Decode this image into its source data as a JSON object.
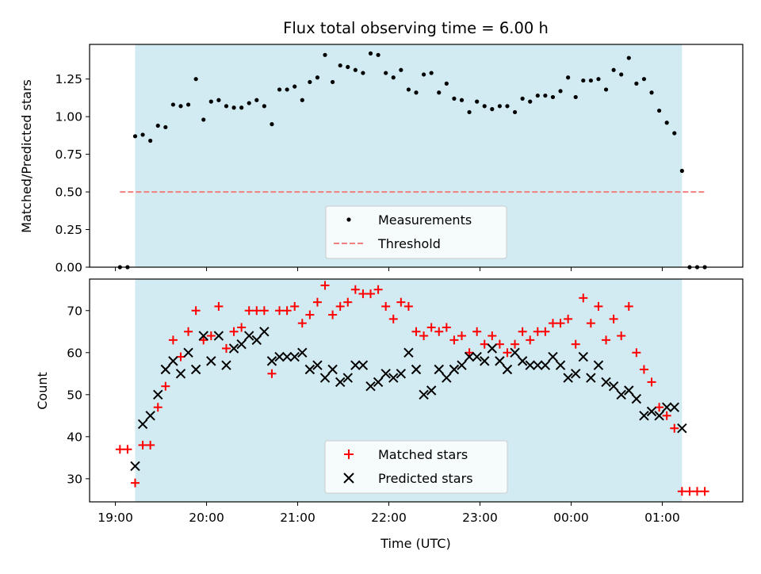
{
  "chart_data": [
    {
      "type": "scatter",
      "title": "Flux total observing time = 6.00 h",
      "xlabel": "",
      "ylabel": "Matched/Predicted stars",
      "ylim": [
        0,
        1.48
      ],
      "yticks": [
        "0.00",
        "0.25",
        "0.50",
        "0.75",
        "1.00",
        "1.25"
      ],
      "ytick_values": [
        0,
        0.25,
        0.5,
        0.75,
        1.0,
        1.25
      ],
      "grid": false,
      "legend_position": "lower-center",
      "shaded_span": {
        "from": "19:13",
        "to": "01:13",
        "color": "#add8e6"
      },
      "threshold": {
        "name": "Threshold",
        "y": 0.5,
        "from": "19:03",
        "to": "01:28",
        "color": "#f08080"
      },
      "series": [
        {
          "name": "Measurements",
          "marker": "dot",
          "color": "#000000",
          "points": [
            [
              "19:03",
              0
            ],
            [
              "19:08",
              0
            ],
            [
              "19:13",
              0.87
            ],
            [
              "19:18",
              0.88
            ],
            [
              "19:23",
              0.84
            ],
            [
              "19:28",
              0.94
            ],
            [
              "19:33",
              0.93
            ],
            [
              "19:38",
              1.08
            ],
            [
              "19:43",
              1.07
            ],
            [
              "19:48",
              1.08
            ],
            [
              "19:53",
              1.25
            ],
            [
              "19:58",
              0.98
            ],
            [
              "20:03",
              1.1
            ],
            [
              "20:08",
              1.11
            ],
            [
              "20:13",
              1.07
            ],
            [
              "20:18",
              1.06
            ],
            [
              "20:23",
              1.06
            ],
            [
              "20:28",
              1.09
            ],
            [
              "20:33",
              1.11
            ],
            [
              "20:38",
              1.07
            ],
            [
              "20:43",
              0.95
            ],
            [
              "20:48",
              1.18
            ],
            [
              "20:53",
              1.18
            ],
            [
              "20:58",
              1.2
            ],
            [
              "21:03",
              1.11
            ],
            [
              "21:08",
              1.23
            ],
            [
              "21:13",
              1.26
            ],
            [
              "21:18",
              1.41
            ],
            [
              "21:23",
              1.23
            ],
            [
              "21:28",
              1.34
            ],
            [
              "21:33",
              1.33
            ],
            [
              "21:38",
              1.31
            ],
            [
              "21:43",
              1.29
            ],
            [
              "21:48",
              1.42
            ],
            [
              "21:53",
              1.41
            ],
            [
              "21:58",
              1.29
            ],
            [
              "22:03",
              1.26
            ],
            [
              "22:08",
              1.31
            ],
            [
              "22:13",
              1.18
            ],
            [
              "22:18",
              1.16
            ],
            [
              "22:23",
              1.28
            ],
            [
              "22:28",
              1.29
            ],
            [
              "22:33",
              1.16
            ],
            [
              "22:38",
              1.22
            ],
            [
              "22:43",
              1.12
            ],
            [
              "22:48",
              1.11
            ],
            [
              "22:53",
              1.03
            ],
            [
              "22:58",
              1.1
            ],
            [
              "23:03",
              1.07
            ],
            [
              "23:08",
              1.05
            ],
            [
              "23:13",
              1.07
            ],
            [
              "23:18",
              1.07
            ],
            [
              "23:23",
              1.03
            ],
            [
              "23:28",
              1.12
            ],
            [
              "23:33",
              1.1
            ],
            [
              "23:38",
              1.14
            ],
            [
              "23:43",
              1.14
            ],
            [
              "23:48",
              1.13
            ],
            [
              "23:53",
              1.17
            ],
            [
              "23:58",
              1.26
            ],
            [
              "00:03",
              1.13
            ],
            [
              "00:08",
              1.24
            ],
            [
              "00:13",
              1.24
            ],
            [
              "00:18",
              1.25
            ],
            [
              "00:23",
              1.18
            ],
            [
              "00:28",
              1.31
            ],
            [
              "00:33",
              1.28
            ],
            [
              "00:38",
              1.39
            ],
            [
              "00:43",
              1.22
            ],
            [
              "00:48",
              1.25
            ],
            [
              "00:53",
              1.16
            ],
            [
              "00:58",
              1.04
            ],
            [
              "01:03",
              0.96
            ],
            [
              "01:08",
              0.89
            ],
            [
              "01:13",
              0.64
            ],
            [
              "01:18",
              0
            ],
            [
              "01:23",
              0
            ],
            [
              "01:28",
              0
            ]
          ]
        }
      ]
    },
    {
      "type": "scatter",
      "title": "",
      "xlabel": "Time (UTC)",
      "ylabel": "Count",
      "ylim": [
        24.5,
        77.5
      ],
      "yticks": [
        "30",
        "40",
        "50",
        "60",
        "70"
      ],
      "ytick_values": [
        30,
        40,
        50,
        60,
        70
      ],
      "x_ticks": [
        "19:00",
        "20:00",
        "21:00",
        "22:00",
        "23:00",
        "00:00",
        "01:00"
      ],
      "x_range": [
        "18:43",
        "01:53"
      ],
      "grid": false,
      "legend_position": "lower-center",
      "shaded_span": {
        "from": "19:13",
        "to": "01:13",
        "color": "#add8e6"
      },
      "series": [
        {
          "name": "Matched stars",
          "marker": "plus",
          "color": "#ff0000",
          "points": [
            [
              "19:03",
              37
            ],
            [
              "19:08",
              37
            ],
            [
              "19:13",
              29
            ],
            [
              "19:18",
              38
            ],
            [
              "19:23",
              38
            ],
            [
              "19:28",
              47
            ],
            [
              "19:33",
              52
            ],
            [
              "19:38",
              63
            ],
            [
              "19:43",
              59
            ],
            [
              "19:48",
              65
            ],
            [
              "19:53",
              70
            ],
            [
              "19:58",
              63
            ],
            [
              "20:03",
              64
            ],
            [
              "20:08",
              71
            ],
            [
              "20:13",
              61
            ],
            [
              "20:18",
              65
            ],
            [
              "20:23",
              66
            ],
            [
              "20:28",
              70
            ],
            [
              "20:33",
              70
            ],
            [
              "20:38",
              70
            ],
            [
              "20:43",
              55
            ],
            [
              "20:48",
              70
            ],
            [
              "20:53",
              70
            ],
            [
              "20:58",
              71
            ],
            [
              "21:03",
              67
            ],
            [
              "21:08",
              69
            ],
            [
              "21:13",
              72
            ],
            [
              "21:18",
              76
            ],
            [
              "21:23",
              69
            ],
            [
              "21:28",
              71
            ],
            [
              "21:33",
              72
            ],
            [
              "21:38",
              75
            ],
            [
              "21:43",
              74
            ],
            [
              "21:48",
              74
            ],
            [
              "21:53",
              75
            ],
            [
              "21:58",
              71
            ],
            [
              "22:03",
              68
            ],
            [
              "22:08",
              72
            ],
            [
              "22:13",
              71
            ],
            [
              "22:18",
              65
            ],
            [
              "22:23",
              64
            ],
            [
              "22:28",
              66
            ],
            [
              "22:33",
              65
            ],
            [
              "22:38",
              66
            ],
            [
              "22:43",
              63
            ],
            [
              "22:48",
              64
            ],
            [
              "22:53",
              60
            ],
            [
              "22:58",
              65
            ],
            [
              "23:03",
              62
            ],
            [
              "23:08",
              64
            ],
            [
              "23:13",
              62
            ],
            [
              "23:18",
              60
            ],
            [
              "23:23",
              62
            ],
            [
              "23:28",
              65
            ],
            [
              "23:33",
              63
            ],
            [
              "23:38",
              65
            ],
            [
              "23:43",
              65
            ],
            [
              "23:48",
              67
            ],
            [
              "23:53",
              67
            ],
            [
              "23:58",
              68
            ],
            [
              "00:03",
              62
            ],
            [
              "00:08",
              73
            ],
            [
              "00:13",
              67
            ],
            [
              "00:18",
              71
            ],
            [
              "00:23",
              63
            ],
            [
              "00:28",
              68
            ],
            [
              "00:33",
              64
            ],
            [
              "00:38",
              71
            ],
            [
              "00:43",
              60
            ],
            [
              "00:48",
              56
            ],
            [
              "00:53",
              53
            ],
            [
              "00:58",
              47
            ],
            [
              "01:03",
              45
            ],
            [
              "01:08",
              42
            ],
            [
              "01:13",
              27
            ],
            [
              "01:18",
              27
            ],
            [
              "01:23",
              27
            ],
            [
              "01:28",
              27
            ]
          ]
        },
        {
          "name": "Predicted stars",
          "marker": "x",
          "color": "#000000",
          "points": [
            [
              "19:13",
              33
            ],
            [
              "19:18",
              43
            ],
            [
              "19:23",
              45
            ],
            [
              "19:28",
              50
            ],
            [
              "19:33",
              56
            ],
            [
              "19:38",
              58
            ],
            [
              "19:43",
              55
            ],
            [
              "19:48",
              60
            ],
            [
              "19:53",
              56
            ],
            [
              "19:58",
              64
            ],
            [
              "20:03",
              58
            ],
            [
              "20:08",
              64
            ],
            [
              "20:13",
              57
            ],
            [
              "20:18",
              61
            ],
            [
              "20:23",
              62
            ],
            [
              "20:28",
              64
            ],
            [
              "20:33",
              63
            ],
            [
              "20:38",
              65
            ],
            [
              "20:43",
              58
            ],
            [
              "20:48",
              59
            ],
            [
              "20:53",
              59
            ],
            [
              "20:58",
              59
            ],
            [
              "21:03",
              60
            ],
            [
              "21:08",
              56
            ],
            [
              "21:13",
              57
            ],
            [
              "21:18",
              54
            ],
            [
              "21:23",
              56
            ],
            [
              "21:28",
              53
            ],
            [
              "21:33",
              54
            ],
            [
              "21:38",
              57
            ],
            [
              "21:43",
              57
            ],
            [
              "21:48",
              52
            ],
            [
              "21:53",
              53
            ],
            [
              "21:58",
              55
            ],
            [
              "22:03",
              54
            ],
            [
              "22:08",
              55
            ],
            [
              "22:13",
              60
            ],
            [
              "22:18",
              56
            ],
            [
              "22:23",
              50
            ],
            [
              "22:28",
              51
            ],
            [
              "22:33",
              56
            ],
            [
              "22:38",
              54
            ],
            [
              "22:43",
              56
            ],
            [
              "22:48",
              57
            ],
            [
              "22:53",
              59
            ],
            [
              "22:58",
              59
            ],
            [
              "23:03",
              58
            ],
            [
              "23:08",
              61
            ],
            [
              "23:13",
              58
            ],
            [
              "23:18",
              56
            ],
            [
              "23:23",
              60
            ],
            [
              "23:28",
              58
            ],
            [
              "23:33",
              57
            ],
            [
              "23:38",
              57
            ],
            [
              "23:43",
              57
            ],
            [
              "23:48",
              59
            ],
            [
              "23:53",
              57
            ],
            [
              "23:58",
              54
            ],
            [
              "00:03",
              55
            ],
            [
              "00:08",
              59
            ],
            [
              "00:13",
              54
            ],
            [
              "00:18",
              57
            ],
            [
              "00:23",
              53
            ],
            [
              "00:28",
              52
            ],
            [
              "00:33",
              50
            ],
            [
              "00:38",
              51
            ],
            [
              "00:43",
              49
            ],
            [
              "00:48",
              45
            ],
            [
              "00:53",
              46
            ],
            [
              "00:58",
              45
            ],
            [
              "01:03",
              47
            ],
            [
              "01:08",
              47
            ],
            [
              "01:13",
              42
            ]
          ]
        }
      ]
    }
  ]
}
